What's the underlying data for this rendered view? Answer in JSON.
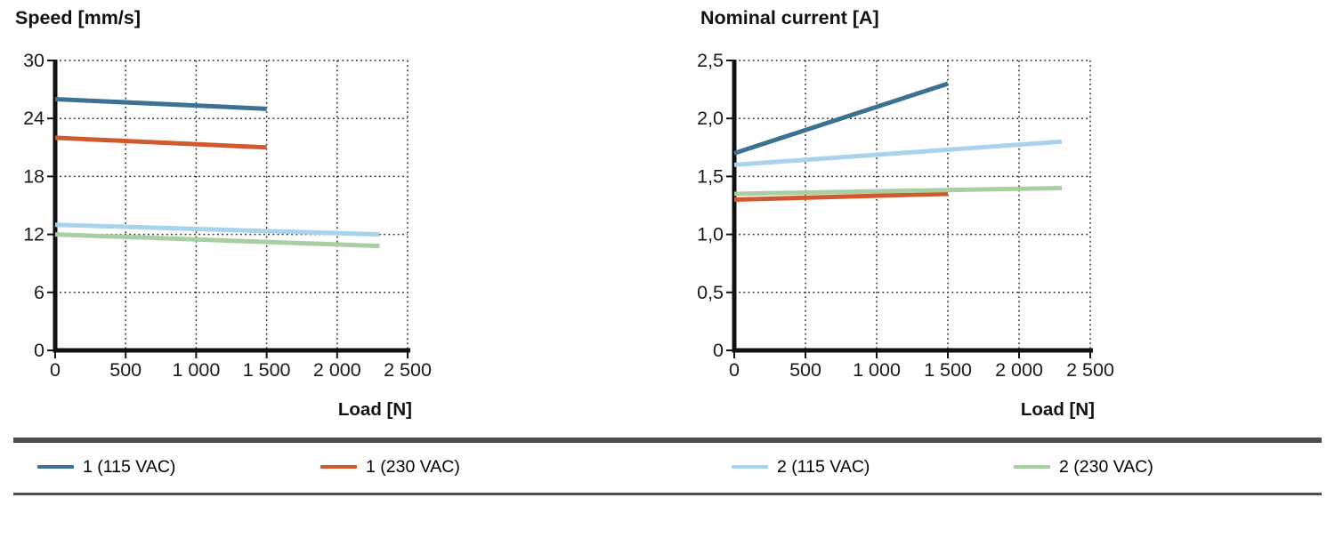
{
  "page": {
    "background": "#ffffff",
    "separator_color": "#4d4d4d"
  },
  "chart_data": [
    {
      "type": "line",
      "title": "Speed [mm/s]",
      "xlabel": "Load [N]",
      "ylabel": "Speed [mm/s]",
      "xlim": [
        0,
        2500
      ],
      "ylim": [
        0,
        30
      ],
      "x_ticks": [
        0,
        500,
        1000,
        1500,
        2000,
        2500
      ],
      "x_tick_labels": [
        "0",
        "500",
        "1 000",
        "1 500",
        "2 000",
        "2 500"
      ],
      "y_ticks": [
        0,
        6,
        12,
        18,
        24,
        30
      ],
      "y_tick_labels": [
        "0",
        "6",
        "12",
        "18",
        "24",
        "30"
      ],
      "grid": "dotted",
      "series": [
        {
          "name": "1 (115 VAC)",
          "color": "#3B7294",
          "points": [
            [
              0,
              26
            ],
            [
              1500,
              25
            ]
          ]
        },
        {
          "name": "1 (230 VAC)",
          "color": "#D1592D",
          "points": [
            [
              0,
              22
            ],
            [
              1500,
              21
            ]
          ]
        },
        {
          "name": "2 (115 VAC)",
          "color": "#A8D2EE",
          "points": [
            [
              0,
              13
            ],
            [
              2300,
              12
            ]
          ]
        },
        {
          "name": "2 (230 VAC)",
          "color": "#A9CEA1",
          "points": [
            [
              0,
              12
            ],
            [
              2300,
              10.8
            ]
          ]
        }
      ]
    },
    {
      "type": "line",
      "title": "Nominal current [A]",
      "xlabel": "Load [N]",
      "ylabel": "Nominal current [A]",
      "xlim": [
        0,
        2500
      ],
      "ylim": [
        0,
        2.5
      ],
      "x_ticks": [
        0,
        500,
        1000,
        1500,
        2000,
        2500
      ],
      "x_tick_labels": [
        "0",
        "500",
        "1 000",
        "1 500",
        "2 000",
        "2 500"
      ],
      "y_ticks": [
        0,
        0.5,
        1.0,
        1.5,
        2.0,
        2.5
      ],
      "y_tick_labels": [
        "0",
        "0,5",
        "1,0",
        "1,5",
        "2,0",
        "2,5"
      ],
      "grid": "dotted",
      "series": [
        {
          "name": "1 (115 VAC)",
          "color": "#3B7294",
          "points": [
            [
              0,
              1.7
            ],
            [
              1500,
              2.3
            ]
          ]
        },
        {
          "name": "1 (230 VAC)",
          "color": "#D1592D",
          "points": [
            [
              0,
              1.3
            ],
            [
              1500,
              1.35
            ]
          ]
        },
        {
          "name": "2 (115 VAC)",
          "color": "#A8D2EE",
          "points": [
            [
              0,
              1.6
            ],
            [
              2300,
              1.8
            ]
          ]
        },
        {
          "name": "2 (230 VAC)",
          "color": "#A9CEA1",
          "points": [
            [
              0,
              1.35
            ],
            [
              2300,
              1.4
            ]
          ]
        }
      ]
    }
  ],
  "legend": {
    "position": "bottom",
    "items": [
      {
        "label": "1 (115 VAC)",
        "color": "#3B7294"
      },
      {
        "label": "1 (230 VAC)",
        "color": "#D1592D"
      },
      {
        "label": "2 (115 VAC)",
        "color": "#A8D2EE"
      },
      {
        "label": "2 (230 VAC)",
        "color": "#A9CEA1"
      }
    ]
  }
}
